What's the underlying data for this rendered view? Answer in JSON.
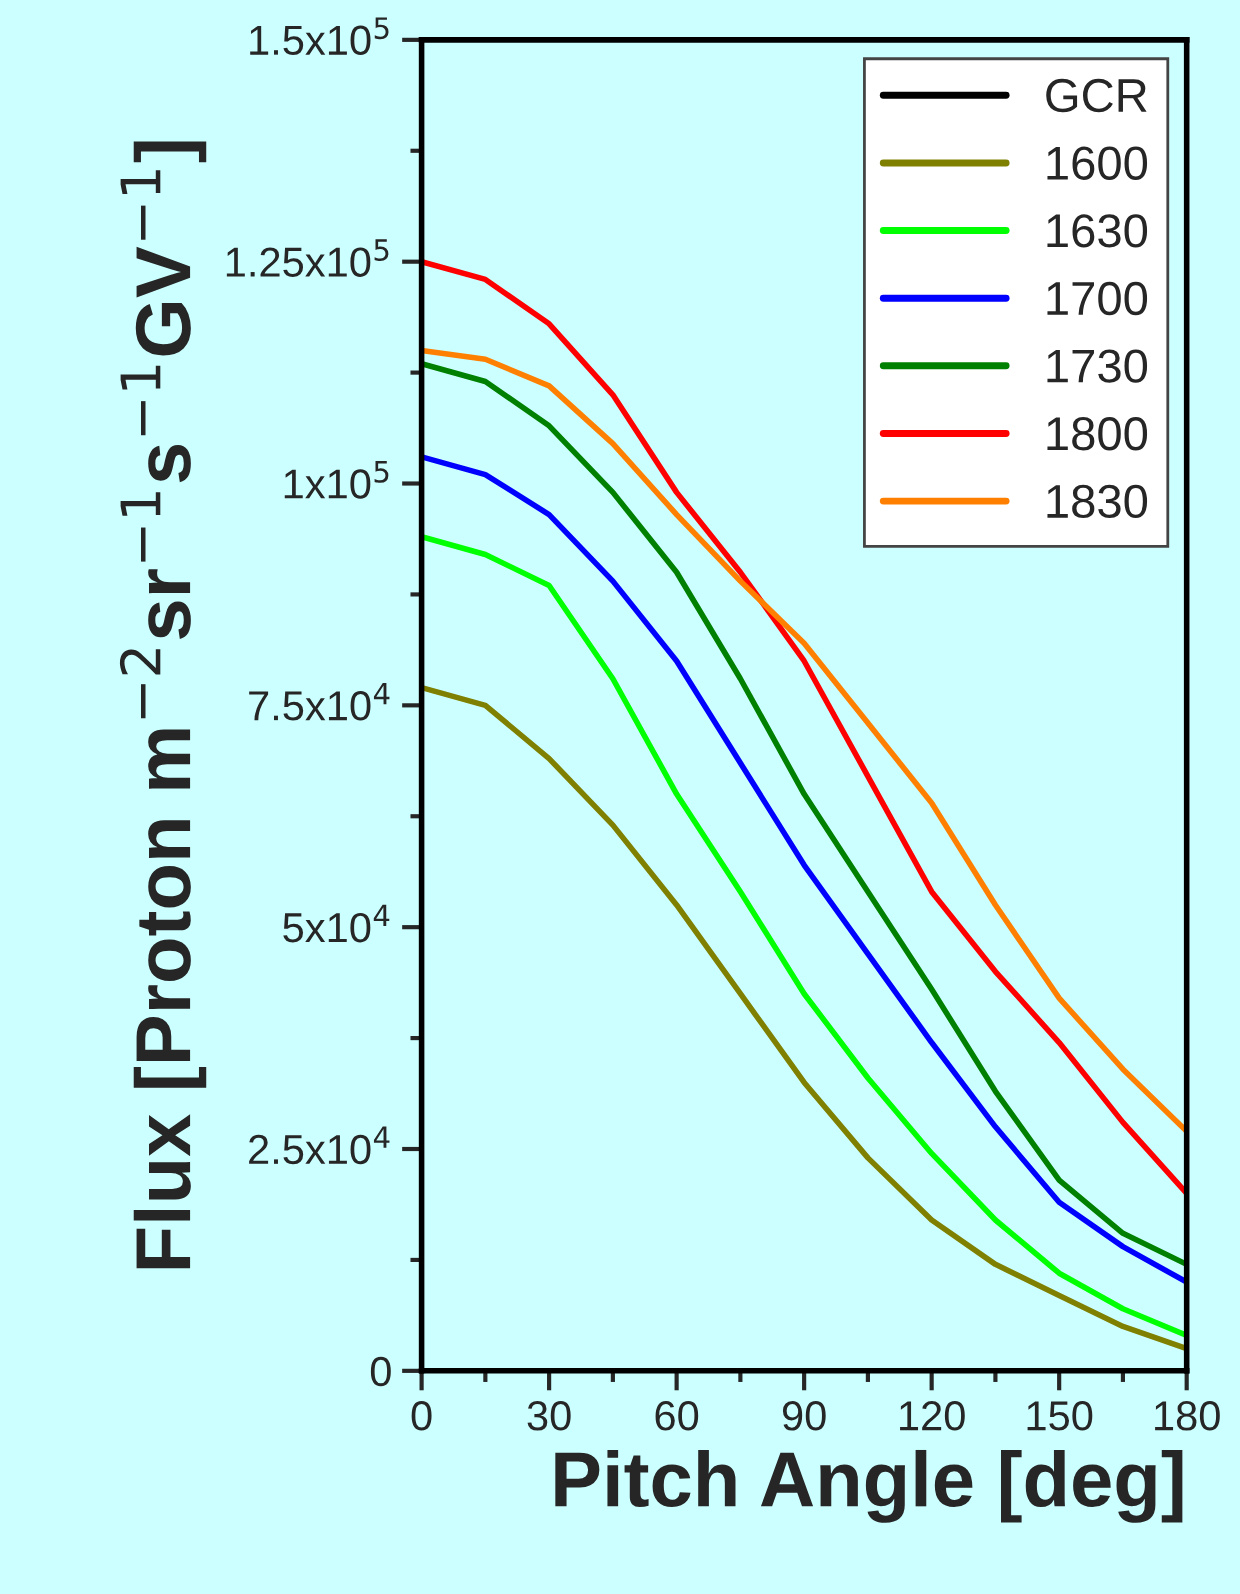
{
  "chart_data": {
    "type": "line",
    "xlabel": "Pitch Angle [deg]",
    "ylabel": "Flux [Proton m$^{−2}$sr$^{−1}$s$^{−1}$GV$^{−1}$]",
    "x": [
      0,
      15,
      30,
      45,
      60,
      75,
      90,
      105,
      120,
      135,
      150,
      165,
      180
    ],
    "series": [
      {
        "name": "GCR",
        "color": "#000000",
        "values": [
          null,
          null,
          null,
          null,
          null,
          null,
          null,
          null,
          null,
          null,
          null,
          null,
          null
        ]
      },
      {
        "name": "1600",
        "color": "#808000",
        "values": [
          77000,
          75000,
          69000,
          61500,
          52500,
          42500,
          32500,
          24000,
          17000,
          12000,
          8500,
          5000,
          2500
        ]
      },
      {
        "name": "1630",
        "color": "#00ff00",
        "values": [
          94000,
          92000,
          88500,
          78000,
          65000,
          54000,
          42500,
          33000,
          24500,
          17000,
          11000,
          7000,
          4000
        ]
      },
      {
        "name": "1700",
        "color": "#0000ff",
        "values": [
          103000,
          101000,
          96500,
          89000,
          80000,
          68500,
          57000,
          47000,
          37000,
          27500,
          19000,
          14000,
          10000
        ]
      },
      {
        "name": "1730",
        "color": "#008000",
        "values": [
          113500,
          111500,
          106500,
          99000,
          90000,
          78000,
          65000,
          54000,
          43000,
          31500,
          21500,
          15500,
          12000
        ]
      },
      {
        "name": "1800",
        "color": "#ff0000",
        "values": [
          125000,
          123000,
          118000,
          110000,
          99000,
          90000,
          80000,
          67000,
          54000,
          45000,
          37000,
          28000,
          20000
        ]
      },
      {
        "name": "1830",
        "color": "#ff8000",
        "values": [
          115000,
          114000,
          111000,
          104500,
          96500,
          89000,
          82000,
          73000,
          64000,
          52500,
          42000,
          34000,
          27000
        ]
      }
    ],
    "xlim": [
      0,
      180
    ],
    "xticks": [
      0,
      30,
      60,
      90,
      120,
      150,
      180
    ],
    "ylim": [
      0,
      150000
    ],
    "yticks": [
      0,
      {
        "value": 25000,
        "label": "2.5x10$^{4}$"
      },
      {
        "value": 50000,
        "label": "5x10$^{4}$"
      },
      {
        "value": 75000,
        "label": "7.5x10$^{4}$"
      },
      {
        "value": 100000,
        "label": "1x10$^{5}$"
      },
      {
        "value": 125000,
        "label": "1.25x10$^{5}$"
      },
      {
        "value": 150000,
        "label": "1.5x10$^{5}$"
      }
    ],
    "legend": "top right",
    "grid": false,
    "marker": "none",
    "line_style": "solid"
  }
}
